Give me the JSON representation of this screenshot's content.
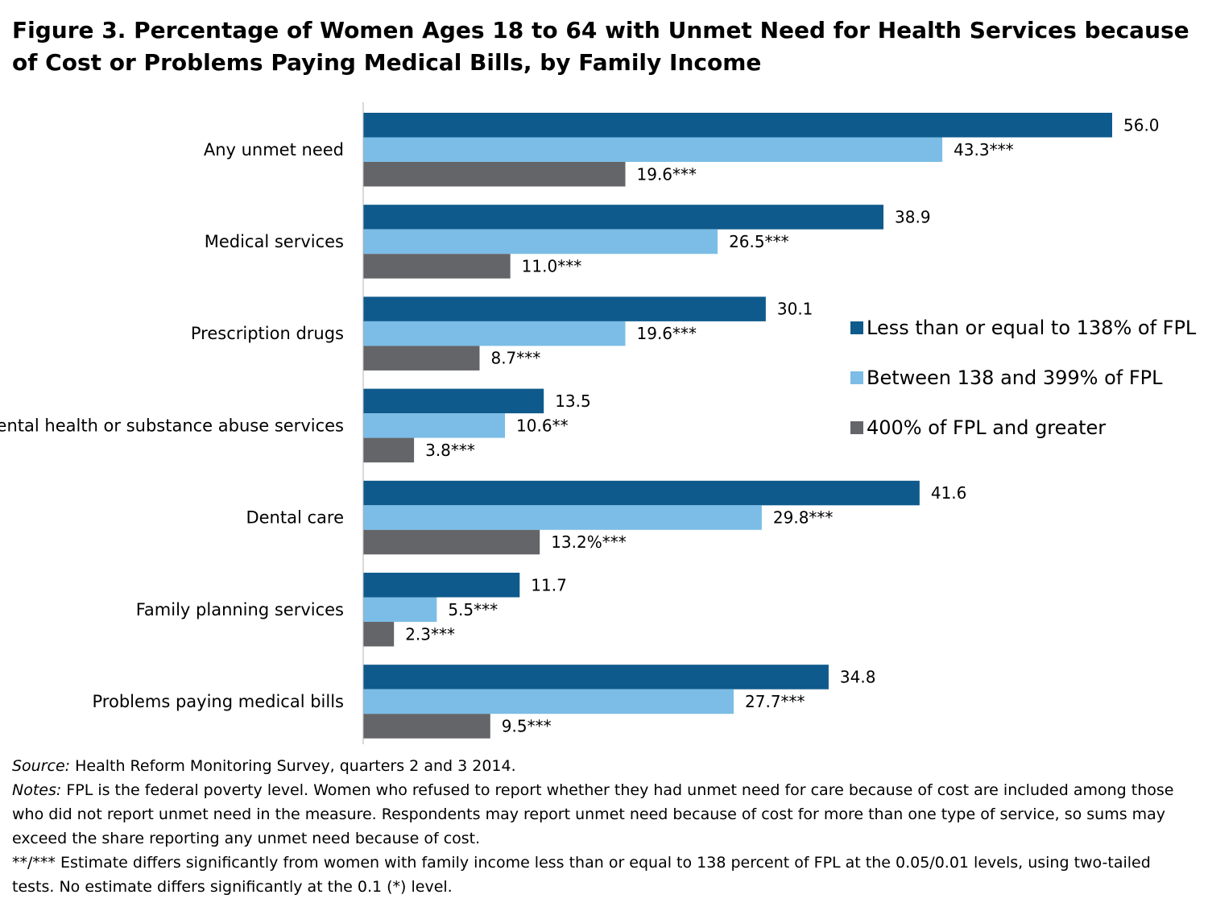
{
  "figure": {
    "title": "Figure 3. Percentage of Women Ages 18 to 64 with Unmet Need for Health Services because of Cost or Problems Paying Medical Bills, by Family Income"
  },
  "chart_data": {
    "type": "bar",
    "orientation": "horizontal",
    "title": "Figure 3. Percentage of Women Ages 18 to 64 with Unmet Need for Health Services because of Cost or Problems Paying Medical Bills, by Family Income",
    "categories": [
      "Any unmet need",
      "Medical services",
      "Prescription drugs",
      "Mental health or substance abuse services",
      "Dental care",
      "Family planning services",
      "Problems paying medical bills"
    ],
    "xlim": [
      0,
      56
    ],
    "grid": false,
    "legend": "right",
    "series": [
      {
        "name": "Less than or equal to 138% of FPL",
        "color": "#0f5a8c",
        "values": [
          56.0,
          38.9,
          30.1,
          13.5,
          41.6,
          11.7,
          34.8
        ],
        "labels": [
          "56.0",
          "38.9",
          "30.1",
          "13.5",
          "41.6",
          "11.7",
          "34.8"
        ]
      },
      {
        "name": "Between 138 and 399% of FPL",
        "color": "#7bbde6",
        "values": [
          43.3,
          26.5,
          19.6,
          10.6,
          29.8,
          5.5,
          27.7
        ],
        "labels": [
          "43.3***",
          "26.5***",
          "19.6***",
          "10.6**",
          "29.8***",
          "5.5***",
          "27.7***"
        ]
      },
      {
        "name": "400% of FPL and greater",
        "color": "#646569",
        "values": [
          19.6,
          11.0,
          8.7,
          3.8,
          13.2,
          2.3,
          9.5
        ],
        "labels": [
          "19.6***",
          "11.0***",
          "8.7***",
          "3.8***",
          "13.2%***",
          "2.3***",
          "9.5***"
        ]
      }
    ]
  },
  "notes": {
    "source_label": "Source:",
    "source_text": " Health Reform Monitoring Survey, quarters 2 and 3 2014.",
    "notes_label": "Notes:",
    "notes_text": "  FPL is the federal poverty level.  Women who refused to report whether they had unmet need for care because of cost are included among those who did not report unmet need in the measure. Respondents may report unmet need because of cost for more than one type of service, so sums may exceed the share reporting any unmet need because of cost.",
    "significance_text": "**/*** Estimate differs significantly from women with family income less than or equal to 138 percent of FPL at the 0.05/0.01 levels, using two-tailed tests. No estimate differs significantly at the 0.1 (*) level."
  }
}
